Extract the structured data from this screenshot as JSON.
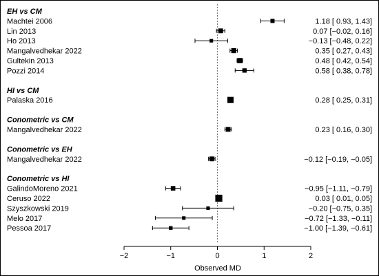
{
  "chart_data": {
    "type": "forest",
    "xlabel": "Observed  MD",
    "xlim": [
      -2,
      2
    ],
    "xticks": [
      -2,
      -1,
      0,
      1,
      2
    ],
    "reference_line": 0,
    "groups": [
      {
        "name": "EH vs CM",
        "studies": [
          {
            "label": "Machtei 2006",
            "est": 1.18,
            "lo": 0.93,
            "hi": 1.43,
            "text": "1.18 [ 0.93,  1.43]",
            "weight": 0.5
          },
          {
            "label": "Lin 2013",
            "est": 0.07,
            "lo": -0.02,
            "hi": 0.16,
            "text": "0.07 [−0.02,  0.16]",
            "weight": 0.65
          },
          {
            "label": "Ho 2013",
            "est": -0.13,
            "lo": -0.48,
            "hi": 0.22,
            "text": "−0.13 [−0.48,  0.22]",
            "weight": 0.35
          },
          {
            "label": "Mangalvedhekar 2022",
            "est": 0.35,
            "lo": 0.27,
            "hi": 0.43,
            "text": "0.35 [ 0.27,  0.43]",
            "weight": 0.7
          },
          {
            "label": "Gultekin 2013",
            "est": 0.48,
            "lo": 0.42,
            "hi": 0.54,
            "text": "0.48 [ 0.42,  0.54]",
            "weight": 0.75
          },
          {
            "label": "Pozzi 2014",
            "est": 0.58,
            "lo": 0.38,
            "hi": 0.78,
            "text": "0.58 [ 0.38,  0.78]",
            "weight": 0.55
          }
        ]
      },
      {
        "name": "HI vs CM",
        "studies": [
          {
            "label": "Palaska 2016",
            "est": 0.28,
            "lo": 0.25,
            "hi": 0.31,
            "text": "0.28 [ 0.25,  0.31]",
            "weight": 1.0
          }
        ]
      },
      {
        "name": "Conometric vs CM",
        "studies": [
          {
            "label": "Mangalvedhekar 2022",
            "est": 0.23,
            "lo": 0.16,
            "hi": 0.3,
            "text": "0.23 [ 0.16,  0.30]",
            "weight": 0.65
          }
        ]
      },
      {
        "name": "Conometric vs EH",
        "studies": [
          {
            "label": "Mangalvedhekar 2022",
            "est": -0.12,
            "lo": -0.19,
            "hi": -0.05,
            "text": "−0.12 [−0.19, −0.05]",
            "weight": 0.65
          }
        ]
      },
      {
        "name": "Conometric vs HI",
        "studies": [
          {
            "label": "GalindoMoreno 2021",
            "est": -0.95,
            "lo": -1.11,
            "hi": -0.79,
            "text": "−0.95 [−1.11, −0.79]",
            "weight": 0.6
          },
          {
            "label": "Ceruso 2022",
            "est": 0.03,
            "lo": 0.01,
            "hi": 0.05,
            "text": "0.03 [ 0.01,  0.05]",
            "weight": 1.2
          },
          {
            "label": "Szyszkowski 2019",
            "est": -0.2,
            "lo": -0.75,
            "hi": 0.35,
            "text": "−0.20 [−0.75,  0.35]",
            "weight": 0.35
          },
          {
            "label": "Melo 2017",
            "est": -0.72,
            "lo": -1.33,
            "hi": -0.11,
            "text": "−0.72 [−1.33, −0.11]",
            "weight": 0.35
          },
          {
            "label": "Pessoa 2017",
            "est": -1.0,
            "lo": -1.39,
            "hi": -0.61,
            "text": "−1.00 [−1.39, −0.61]",
            "weight": 0.4
          }
        ]
      }
    ]
  }
}
